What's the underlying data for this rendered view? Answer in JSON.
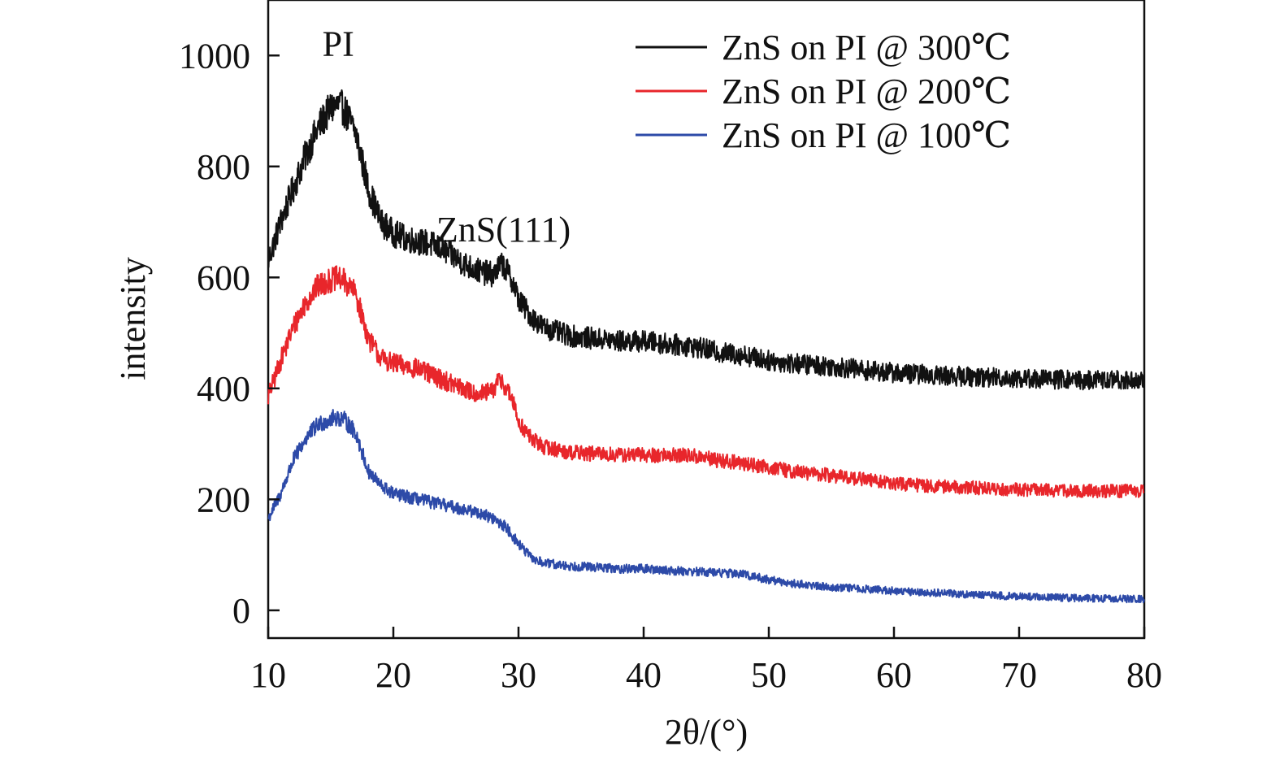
{
  "chart_data": {
    "type": "line",
    "xlabel": "2θ/(°)",
    "ylabel": "intensity",
    "xlim": [
      10,
      80
    ],
    "ylim": [
      -50,
      1100
    ],
    "xticks": [
      10,
      20,
      30,
      40,
      50,
      60,
      70,
      80
    ],
    "yticks": [
      0,
      200,
      400,
      600,
      800,
      1000
    ],
    "grid": false,
    "legend_position": "top-right",
    "annotations": [
      {
        "text": "PI",
        "x": 15.6,
        "y": 1000
      },
      {
        "text": "ZnS(111)",
        "x": 28.8,
        "y": 665
      }
    ],
    "series": [
      {
        "name": "ZnS on PI @ 300℃",
        "color": "#111111",
        "x": [
          10,
          11,
          12,
          13,
          14,
          15,
          15.5,
          16,
          17,
          18,
          19,
          20,
          21,
          22,
          23,
          24,
          25,
          26,
          27,
          28,
          28.7,
          29.5,
          30,
          31,
          32,
          34,
          36,
          38,
          40,
          42,
          44,
          46,
          48,
          50,
          52,
          55,
          58,
          60,
          65,
          70,
          75,
          80
        ],
        "y": [
          630,
          700,
          760,
          820,
          870,
          905,
          910,
          905,
          860,
          760,
          700,
          680,
          670,
          665,
          660,
          650,
          635,
          620,
          610,
          605,
          625,
          595,
          560,
          530,
          510,
          495,
          490,
          485,
          485,
          480,
          475,
          465,
          460,
          450,
          445,
          440,
          432,
          428,
          422,
          418,
          415,
          415
        ]
      },
      {
        "name": "ZnS on PI @ 200℃",
        "color": "#e8262b",
        "x": [
          10,
          11,
          12,
          13,
          14,
          15,
          15.5,
          16,
          17,
          18,
          19,
          20,
          21,
          22,
          23,
          24,
          25,
          26,
          27,
          28,
          28.5,
          29.5,
          30,
          31,
          32,
          34,
          36,
          38,
          40,
          42,
          44,
          46,
          48,
          50,
          52,
          55,
          58,
          60,
          65,
          70,
          75,
          80
        ],
        "y": [
          385,
          450,
          510,
          555,
          585,
          595,
          598,
          595,
          570,
          490,
          455,
          445,
          440,
          435,
          425,
          415,
          405,
          395,
          390,
          395,
          420,
          380,
          340,
          310,
          295,
          285,
          282,
          280,
          280,
          280,
          278,
          270,
          265,
          258,
          250,
          243,
          235,
          228,
          222,
          218,
          215,
          215
        ]
      },
      {
        "name": "ZnS on PI @ 100℃",
        "color": "#2d4aa8",
        "x": [
          10,
          11,
          12,
          13,
          14,
          15,
          15.5,
          16,
          17,
          18,
          19,
          20,
          21,
          22,
          23,
          24,
          25,
          26,
          27,
          28,
          29,
          30,
          31,
          32,
          34,
          36,
          38,
          40,
          42,
          44,
          46,
          48,
          50,
          52,
          55,
          58,
          60,
          65,
          70,
          75,
          80
        ],
        "y": [
          165,
          210,
          270,
          310,
          335,
          345,
          348,
          345,
          320,
          250,
          225,
          210,
          205,
          200,
          195,
          190,
          185,
          180,
          175,
          165,
          150,
          120,
          95,
          85,
          80,
          78,
          75,
          75,
          72,
          70,
          68,
          65,
          55,
          48,
          42,
          38,
          35,
          30,
          25,
          22,
          20
        ]
      }
    ]
  }
}
